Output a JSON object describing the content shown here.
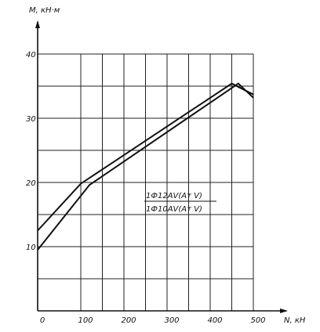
{
  "chart_data": {
    "type": "line",
    "title": "",
    "xlabel": "N, кН",
    "ylabel": "M, кН·м",
    "xlim": [
      0,
      500
    ],
    "ylim": [
      0,
      45
    ],
    "x_ticks": [
      "0",
      "100",
      "200",
      "300",
      "400",
      "500"
    ],
    "y_ticks": [
      "10",
      "20",
      "30",
      "40"
    ],
    "grid": true,
    "legend_lines": [
      "1Ф12АⅤ(Aт Ⅴ)",
      "1Ф10АⅤ(Aт Ⅴ)"
    ],
    "series": [
      {
        "x": [
          0,
          100,
          450,
          500
        ],
        "y": [
          12.5,
          19.8,
          35.4,
          33.7
        ]
      },
      {
        "x": [
          0,
          120,
          465,
          500
        ],
        "y": [
          9.5,
          19.6,
          35.4,
          33.2
        ]
      }
    ]
  }
}
